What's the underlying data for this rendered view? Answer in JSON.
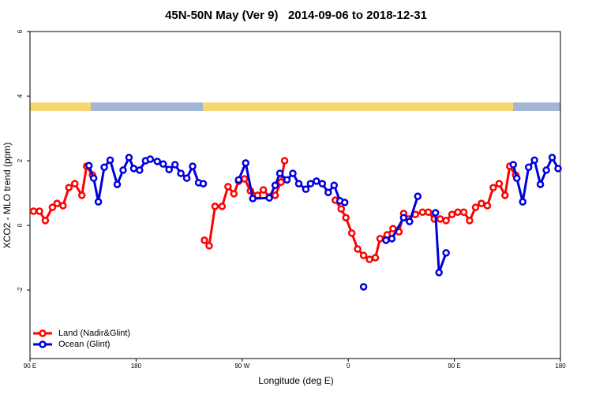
{
  "chart_data": {
    "type": "line",
    "title": "45N-50N May (Ver 9)   2014-09-06 to 2018-12-31",
    "xlabel": "Longitude (deg E)",
    "ylabel": "XCO2 - MLO trend (ppm)",
    "xlim": [
      90,
      540
    ],
    "ylim": [
      -4.12,
      6
    ],
    "xticks": [
      {
        "value": 90,
        "label": "90 E"
      },
      180,
      {
        "value": 270,
        "label": "90 W"
      },
      {
        "value": 360,
        "label": "0"
      },
      {
        "value": 450,
        "label": "90 E"
      },
      {
        "value": 540,
        "label": "180"
      }
    ],
    "yticks": [
      -2,
      0,
      2,
      4,
      6
    ],
    "legend": "bottom-left",
    "series": [
      {
        "name": "Land (Nadir&Glint)",
        "color": "#ff0000",
        "x": [
          93,
          98,
          103,
          109,
          113,
          118,
          123,
          128,
          134,
          138,
          143,
          null,
          238,
          242,
          247,
          253,
          258,
          263,
          267,
          272,
          277,
          283,
          288,
          293,
          298,
          303,
          306,
          null,
          349,
          354,
          358,
          363,
          368,
          373,
          378,
          383,
          387,
          393,
          398,
          403,
          407,
          411,
          417,
          423,
          428,
          433,
          438,
          443,
          448,
          453,
          458,
          463,
          468,
          473,
          478,
          483,
          488,
          493,
          497,
          502
        ],
        "values": [
          0.44,
          0.44,
          0.15,
          0.56,
          0.68,
          0.61,
          1.17,
          1.29,
          0.93,
          1.83,
          1.56,
          null,
          -0.46,
          -0.63,
          0.59,
          0.59,
          1.2,
          0.98,
          1.37,
          1.44,
          1.07,
          0.93,
          1.1,
          0.88,
          0.93,
          1.34,
          2.0,
          null,
          0.78,
          0.51,
          0.24,
          -0.24,
          -0.73,
          -0.93,
          -1.05,
          -1.0,
          -0.41,
          -0.29,
          -0.1,
          -0.2,
          0.37,
          0.2,
          0.34,
          0.41,
          0.41,
          0.2,
          0.2,
          0.15,
          0.34,
          0.41,
          0.41,
          0.15,
          0.56,
          0.68,
          0.61,
          1.17,
          1.29,
          0.93,
          1.83,
          1.56
        ]
      },
      {
        "name": "Ocean (Glint)",
        "color": "#0000dd",
        "x": [
          140,
          144,
          148,
          153,
          158,
          164,
          169,
          174,
          178,
          183,
          188,
          192,
          198,
          203,
          208,
          213,
          218,
          223,
          228,
          233,
          237,
          null,
          267,
          273,
          279,
          293,
          298,
          302,
          308,
          313,
          318,
          324,
          328,
          333,
          338,
          343,
          348,
          353,
          357,
          null,
          373,
          null,
          392,
          397,
          407,
          412,
          419,
          null,
          434,
          437,
          443,
          null,
          500,
          503,
          508,
          513,
          518,
          523,
          528,
          533,
          538
        ],
        "values": [
          1.85,
          1.46,
          0.73,
          1.8,
          2.02,
          1.27,
          1.71,
          2.1,
          1.76,
          1.71,
          2.0,
          2.05,
          1.98,
          1.9,
          1.73,
          1.88,
          1.61,
          1.46,
          1.83,
          1.32,
          1.29,
          null,
          1.41,
          1.93,
          0.83,
          0.85,
          1.24,
          1.61,
          1.41,
          1.61,
          1.29,
          1.12,
          1.29,
          1.37,
          1.29,
          1.02,
          1.24,
          0.76,
          0.71,
          null,
          -1.9,
          null,
          -0.46,
          -0.41,
          0.24,
          0.12,
          0.9,
          null,
          0.39,
          -1.46,
          -0.85,
          null,
          1.88,
          1.46,
          0.73,
          1.8,
          2.02,
          1.27,
          1.71,
          2.1,
          1.76
        ]
      }
    ]
  }
}
